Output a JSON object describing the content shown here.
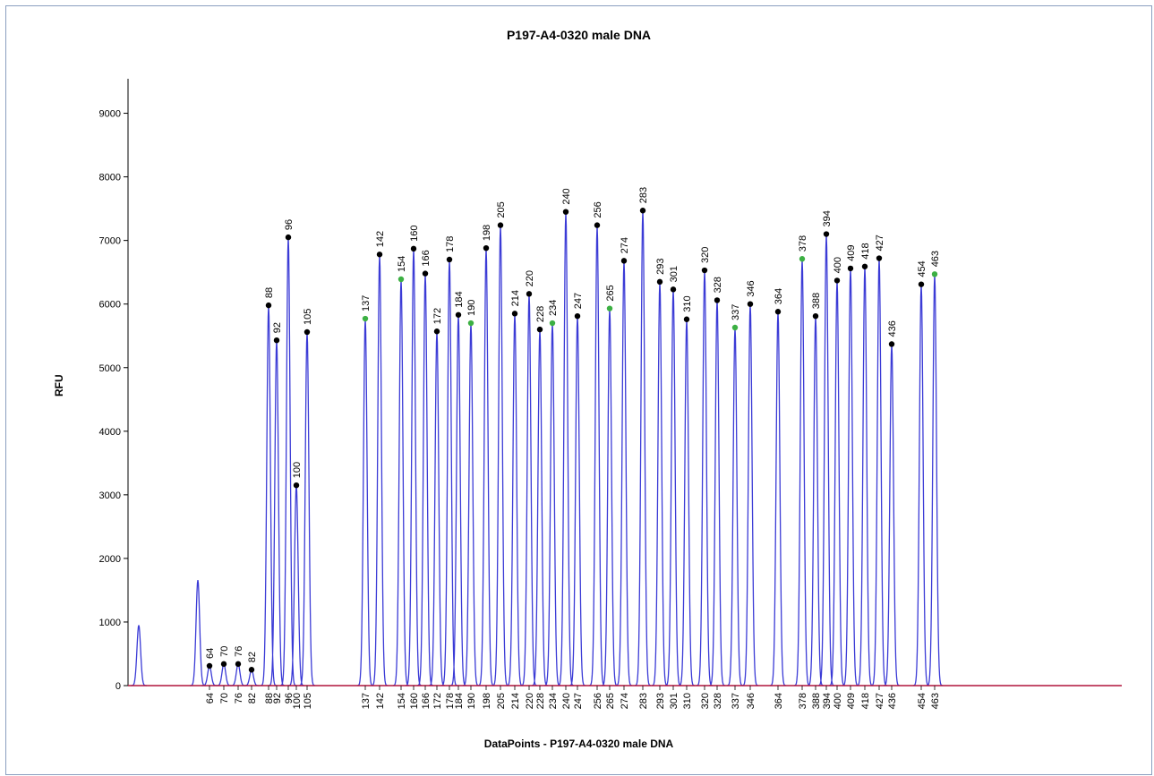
{
  "chart_data": {
    "type": "line",
    "title": "P197-A4-0320 male DNA",
    "xlabel": "DataPoints - P197-A4-0320 male DNA",
    "ylabel": "RFU",
    "ylim": [
      0,
      9500
    ],
    "yticks": [
      0,
      1000,
      2000,
      3000,
      4000,
      5000,
      6000,
      7000,
      8000,
      9000
    ],
    "grid": false,
    "legend": "none",
    "colors": {
      "trace": "#3b3bd6",
      "baseline": "#b0143c",
      "marker_default": "#000000",
      "marker_highlight": "#3cb043"
    },
    "x_axis_labels": [
      "64",
      "70",
      "76",
      "82",
      "88",
      "92",
      "96",
      "100",
      "105",
      "137",
      "142",
      "154",
      "160",
      "166",
      "172",
      "178",
      "184",
      "190",
      "198",
      "205",
      "214",
      "220",
      "228",
      "234",
      "240",
      "247",
      "256",
      "265",
      "274",
      "283",
      "293",
      "301",
      "310",
      "320",
      "328",
      "337",
      "346",
      "364",
      "378",
      "388",
      "394",
      "400",
      "409",
      "418",
      "427",
      "436",
      "454",
      "463"
    ],
    "unlabeled_peaks": [
      {
        "x_index": -2,
        "rfu": 950
      },
      {
        "x_index": -1,
        "rfu": 1660
      }
    ],
    "series": [
      {
        "peaks": [
          {
            "size": "64",
            "rfu": 310,
            "marker": "black"
          },
          {
            "size": "70",
            "rfu": 340,
            "marker": "black"
          },
          {
            "size": "76",
            "rfu": 340,
            "marker": "black"
          },
          {
            "size": "82",
            "rfu": 250,
            "marker": "black"
          },
          {
            "size": "88",
            "rfu": 5980,
            "marker": "black"
          },
          {
            "size": "92",
            "rfu": 5430,
            "marker": "black"
          },
          {
            "size": "96",
            "rfu": 7050,
            "marker": "black"
          },
          {
            "size": "100",
            "rfu": 3150,
            "marker": "black"
          },
          {
            "size": "105",
            "rfu": 5560,
            "marker": "black"
          },
          {
            "size": "137",
            "rfu": 5770,
            "marker": "green"
          },
          {
            "size": "142",
            "rfu": 6780,
            "marker": "black"
          },
          {
            "size": "154",
            "rfu": 6390,
            "marker": "green"
          },
          {
            "size": "160",
            "rfu": 6870,
            "marker": "black"
          },
          {
            "size": "166",
            "rfu": 6480,
            "marker": "black"
          },
          {
            "size": "172",
            "rfu": 5570,
            "marker": "black"
          },
          {
            "size": "178",
            "rfu": 6700,
            "marker": "black"
          },
          {
            "size": "184",
            "rfu": 5830,
            "marker": "black"
          },
          {
            "size": "190",
            "rfu": 5700,
            "marker": "green"
          },
          {
            "size": "198",
            "rfu": 6880,
            "marker": "black"
          },
          {
            "size": "205",
            "rfu": 7240,
            "marker": "black"
          },
          {
            "size": "214",
            "rfu": 5850,
            "marker": "black"
          },
          {
            "size": "220",
            "rfu": 6160,
            "marker": "black"
          },
          {
            "size": "228",
            "rfu": 5600,
            "marker": "black"
          },
          {
            "size": "234",
            "rfu": 5700,
            "marker": "green"
          },
          {
            "size": "240",
            "rfu": 7450,
            "marker": "black"
          },
          {
            "size": "247",
            "rfu": 5810,
            "marker": "black"
          },
          {
            "size": "256",
            "rfu": 7240,
            "marker": "black"
          },
          {
            "size": "265",
            "rfu": 5930,
            "marker": "green"
          },
          {
            "size": "274",
            "rfu": 6680,
            "marker": "black"
          },
          {
            "size": "283",
            "rfu": 7470,
            "marker": "black"
          },
          {
            "size": "293",
            "rfu": 6350,
            "marker": "black"
          },
          {
            "size": "301",
            "rfu": 6230,
            "marker": "black"
          },
          {
            "size": "310",
            "rfu": 5760,
            "marker": "black"
          },
          {
            "size": "320",
            "rfu": 6530,
            "marker": "black"
          },
          {
            "size": "328",
            "rfu": 6060,
            "marker": "black"
          },
          {
            "size": "337",
            "rfu": 5630,
            "marker": "green"
          },
          {
            "size": "346",
            "rfu": 6000,
            "marker": "black"
          },
          {
            "size": "364",
            "rfu": 5880,
            "marker": "black"
          },
          {
            "size": "378",
            "rfu": 6710,
            "marker": "green"
          },
          {
            "size": "388",
            "rfu": 5810,
            "marker": "black"
          },
          {
            "size": "394",
            "rfu": 7100,
            "marker": "black"
          },
          {
            "size": "400",
            "rfu": 6370,
            "marker": "black"
          },
          {
            "size": "409",
            "rfu": 6560,
            "marker": "black"
          },
          {
            "size": "418",
            "rfu": 6590,
            "marker": "black"
          },
          {
            "size": "427",
            "rfu": 6720,
            "marker": "black"
          },
          {
            "size": "436",
            "rfu": 5370,
            "marker": "black"
          },
          {
            "size": "454",
            "rfu": 6310,
            "marker": "black"
          },
          {
            "size": "463",
            "rfu": 6470,
            "marker": "green"
          }
        ]
      }
    ]
  }
}
